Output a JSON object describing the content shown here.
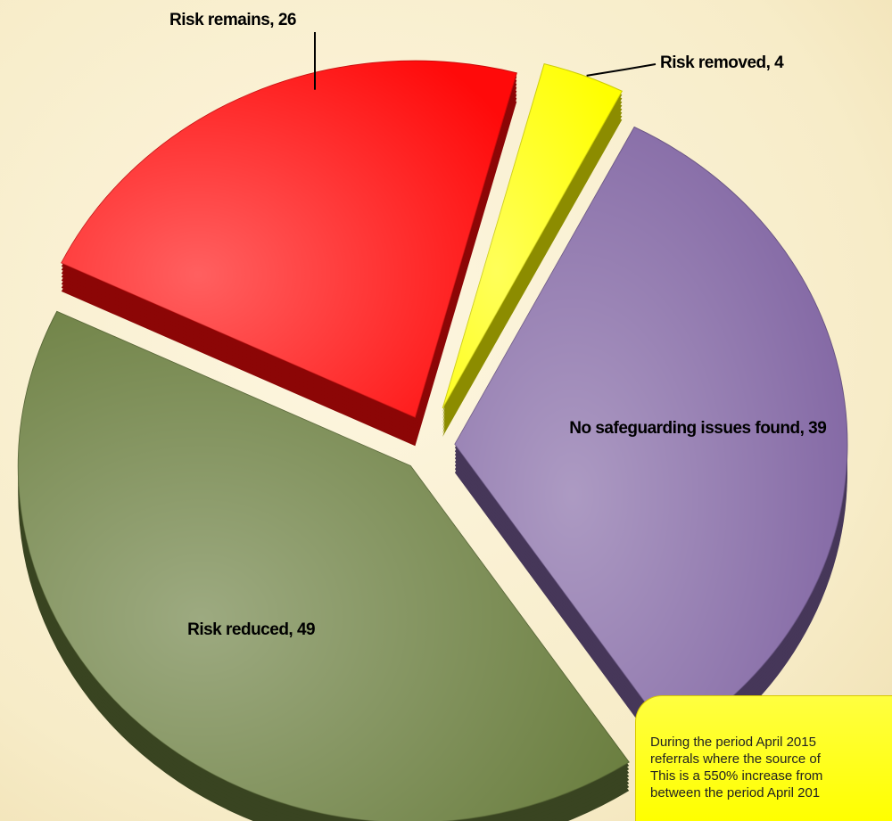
{
  "chart_data": {
    "type": "pie",
    "categories": [
      "Risk removed, 4",
      "No safeguarding issues found, 39",
      "Risk reduced, 49",
      "Risk remains, 26"
    ],
    "values": [
      4,
      39,
      49,
      26
    ],
    "colors": [
      "#ffff00",
      "#8064a2",
      "#687c3c",
      "#ff0a0a"
    ],
    "note": [
      "During the period April 2015",
      "referrals where the source of",
      "This is a 550% increase from",
      "between the period April 201"
    ]
  }
}
